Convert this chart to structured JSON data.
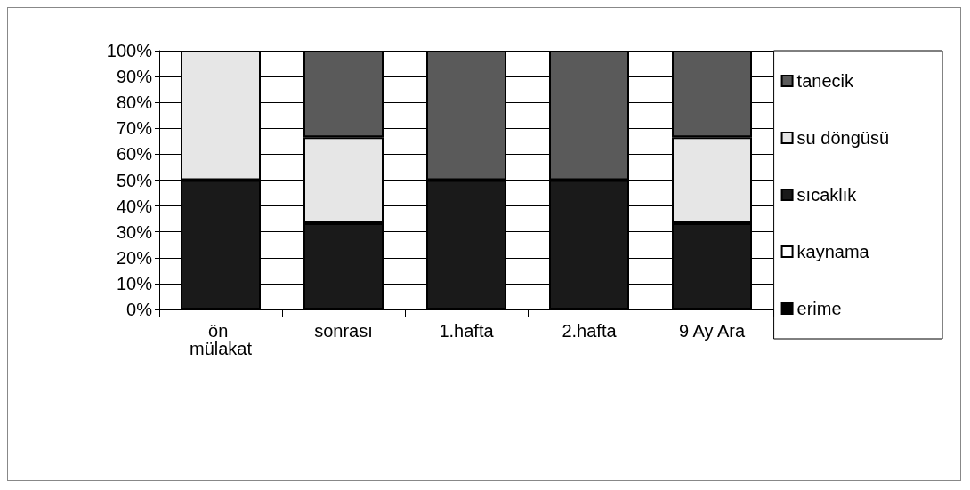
{
  "chart_data": {
    "type": "bar",
    "stacked": true,
    "categories": [
      "ön mülakat",
      "sonrası",
      "1.hafta",
      "2.hafta",
      "9 Ay Ara"
    ],
    "series": [
      {
        "name": "erime",
        "color": "#000000",
        "values": [
          0,
          0,
          0,
          0,
          0
        ]
      },
      {
        "name": "kaynama",
        "color": "#ffffff",
        "values": [
          0,
          0,
          0,
          0,
          0
        ]
      },
      {
        "name": "sıcaklık",
        "color": "#1a1a1a",
        "values": [
          50,
          33.3,
          50,
          50,
          33.3
        ]
      },
      {
        "name": "su döngüsü",
        "color": "#e6e6e6",
        "values": [
          50,
          33.3,
          0,
          0,
          33.3
        ]
      },
      {
        "name": "tanecik",
        "color": "#5a5a5a",
        "values": [
          0,
          33.4,
          50,
          50,
          33.4
        ]
      }
    ],
    "ylim": [
      0,
      100
    ],
    "yticks": [
      {
        "value": 0,
        "label": "0%"
      },
      {
        "value": 10,
        "label": "10%"
      },
      {
        "value": 20,
        "label": "20%"
      },
      {
        "value": 30,
        "label": "30%"
      },
      {
        "value": 40,
        "label": "40%"
      },
      {
        "value": 50,
        "label": "50%"
      },
      {
        "value": 60,
        "label": "60%"
      },
      {
        "value": 70,
        "label": "70%"
      },
      {
        "value": 80,
        "label": "80%"
      },
      {
        "value": 90,
        "label": "90%"
      },
      {
        "value": 100,
        "label": "100%"
      }
    ],
    "grid": "y",
    "legend": "right"
  }
}
